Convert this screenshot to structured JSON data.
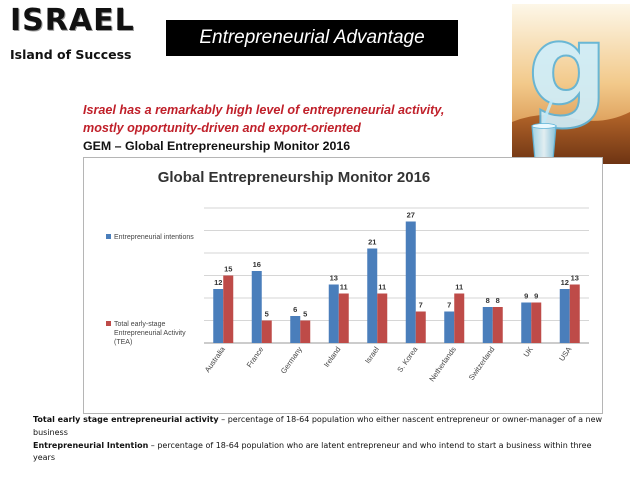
{
  "header": {
    "title": "ISRAEL",
    "subtitle": "Island of Success",
    "banner": "Entrepreneurial Advantage"
  },
  "logo": {
    "glyph": "g",
    "icon": "water-glass-logo-icon"
  },
  "intro": {
    "line1": "Israel has a remarkably high level of entrepreneurial activity,",
    "line2": "mostly opportunity-driven and export-oriented",
    "source": "GEM – Global Entrepreneurship Monitor 2016"
  },
  "chart_data": {
    "type": "bar",
    "title": "Global Entrepreneurship Monitor 2016",
    "categories": [
      "Australia",
      "France",
      "Germany",
      "Ireland",
      "Israel",
      "S. Korea",
      "Netherlands",
      "Switzerland",
      "UK",
      "USA"
    ],
    "series": [
      {
        "name": "Entrepreneurial intentions",
        "color": "#4a7ebb",
        "values": [
          12,
          16,
          6,
          13,
          21,
          27,
          7,
          8,
          9,
          12
        ]
      },
      {
        "name": "Total early-stage Entrepreneurial Activity (TEA)",
        "color": "#be4b48",
        "values": [
          15,
          5,
          5,
          11,
          11,
          7,
          11,
          8,
          9,
          13
        ]
      }
    ],
    "ylim": [
      0,
      30
    ],
    "grid": true,
    "legend": "right",
    "xlabel": "",
    "ylabel": ""
  },
  "footnote": {
    "tea_term": "Total early stage entrepreneurial activity",
    "tea_def": " – percentage of 18-64 population who either nascent entrepreneur or owner-manager of a new business",
    "intent_term": "Entrepreneurial Intention",
    "intent_def": " – percentage of 18-64 population who are latent entrepreneur and who intend to start a business within three years"
  }
}
